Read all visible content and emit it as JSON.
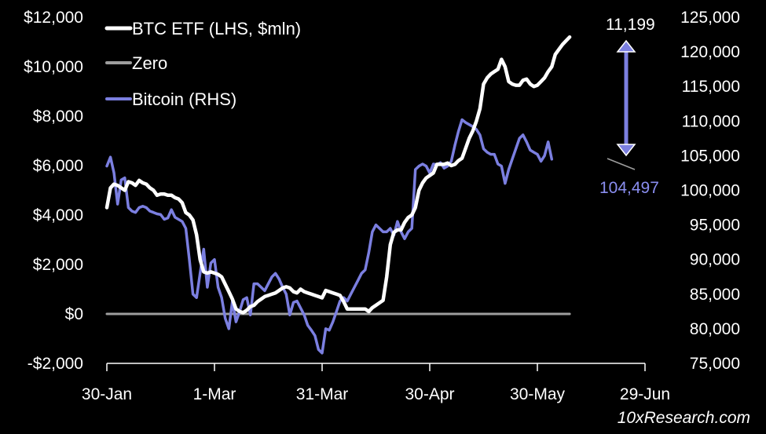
{
  "chart_data": {
    "type": "line",
    "title": "",
    "x_start_date": "2025-01-30",
    "x_ticks": [
      {
        "label": "30-Jan",
        "day": 0
      },
      {
        "label": "1-Mar",
        "day": 30
      },
      {
        "label": "31-Mar",
        "day": 60
      },
      {
        "label": "30-Apr",
        "day": 90
      },
      {
        "label": "30-May",
        "day": 120
      },
      {
        "label": "29-Jun",
        "day": 150
      }
    ],
    "xlim": [
      0,
      150
    ],
    "y_left": {
      "ylim": [
        -2000,
        12000
      ],
      "ticks": [
        -2000,
        0,
        2000,
        4000,
        6000,
        8000,
        10000,
        12000
      ],
      "tick_labels": [
        "-$2,000",
        "$0",
        "$2,000",
        "$4,000",
        "$6,000",
        "$8,000",
        "$10,000",
        "$12,000"
      ]
    },
    "y_right": {
      "ylim": [
        75000,
        125000
      ],
      "ticks": [
        75000,
        80000,
        85000,
        90000,
        95000,
        100000,
        105000,
        110000,
        115000,
        120000,
        125000
      ],
      "tick_labels": [
        "75,000",
        "80,000",
        "85,000",
        "90,000",
        "95,000",
        "100,000",
        "105,000",
        "110,000",
        "115,000",
        "120,000",
        "125,000"
      ]
    },
    "legend": {
      "position": "top-left",
      "entries": [
        "BTC ETF (LHS, $mln)",
        "Zero",
        "Bitcoin (RHS)"
      ]
    },
    "series": [
      {
        "name": "BTC ETF (LHS, $mln)",
        "axis": "left",
        "color": "#ffffff",
        "points": [
          [
            0,
            4300
          ],
          [
            1,
            5100
          ],
          [
            2,
            5250
          ],
          [
            3,
            5200
          ],
          [
            4,
            5100
          ],
          [
            5,
            5000
          ],
          [
            6,
            5350
          ],
          [
            7,
            5300
          ],
          [
            8,
            5200
          ],
          [
            9,
            5400
          ],
          [
            10,
            5300
          ],
          [
            11,
            5250
          ],
          [
            12,
            5100
          ],
          [
            13,
            5000
          ],
          [
            14,
            4800
          ],
          [
            15,
            4850
          ],
          [
            16,
            4850
          ],
          [
            17,
            4800
          ],
          [
            18,
            4800
          ],
          [
            19,
            4700
          ],
          [
            20,
            4650
          ],
          [
            21,
            4500
          ],
          [
            22,
            4100
          ],
          [
            23,
            4000
          ],
          [
            24,
            3800
          ],
          [
            25,
            3200
          ],
          [
            26,
            2200
          ],
          [
            27,
            1700
          ],
          [
            28,
            1650
          ],
          [
            29,
            1700
          ],
          [
            30,
            1650
          ],
          [
            31,
            1600
          ],
          [
            32,
            1500
          ],
          [
            33,
            1200
          ],
          [
            34,
            900
          ],
          [
            35,
            600
          ],
          [
            36,
            200
          ],
          [
            37,
            100
          ],
          [
            38,
            50
          ],
          [
            39,
            150
          ],
          [
            40,
            300
          ],
          [
            41,
            350
          ],
          [
            42,
            500
          ],
          [
            43,
            600
          ],
          [
            44,
            700
          ],
          [
            45,
            750
          ],
          [
            46,
            800
          ],
          [
            47,
            850
          ],
          [
            48,
            950
          ],
          [
            49,
            1050
          ],
          [
            50,
            1100
          ],
          [
            51,
            1050
          ],
          [
            52,
            900
          ],
          [
            53,
            850
          ],
          [
            54,
            1000
          ],
          [
            55,
            900
          ],
          [
            56,
            850
          ],
          [
            57,
            800
          ],
          [
            58,
            750
          ],
          [
            59,
            700
          ],
          [
            60,
            650
          ],
          [
            61,
            950
          ],
          [
            62,
            900
          ],
          [
            63,
            850
          ],
          [
            64,
            800
          ],
          [
            65,
            750
          ],
          [
            66,
            500
          ],
          [
            67,
            200
          ],
          [
            68,
            200
          ],
          [
            69,
            200
          ],
          [
            70,
            200
          ],
          [
            71,
            200
          ],
          [
            72,
            200
          ],
          [
            73,
            100
          ],
          [
            74,
            250
          ],
          [
            75,
            350
          ],
          [
            76,
            450
          ],
          [
            77,
            550
          ],
          [
            78,
            1500
          ],
          [
            79,
            2800
          ],
          [
            80,
            3300
          ],
          [
            81,
            3400
          ],
          [
            82,
            3400
          ],
          [
            83,
            3700
          ],
          [
            84,
            3900
          ],
          [
            85,
            4000
          ],
          [
            86,
            4300
          ],
          [
            87,
            5000
          ],
          [
            88,
            5300
          ],
          [
            89,
            5500
          ],
          [
            90,
            5600
          ],
          [
            91,
            5700
          ],
          [
            92,
            6050
          ],
          [
            93,
            6050
          ],
          [
            94,
            6050
          ],
          [
            95,
            6100
          ],
          [
            96,
            6000
          ],
          [
            97,
            6050
          ],
          [
            98,
            6200
          ],
          [
            99,
            6300
          ],
          [
            100,
            6700
          ],
          [
            101,
            7100
          ],
          [
            102,
            7400
          ],
          [
            103,
            7800
          ],
          [
            104,
            8300
          ],
          [
            105,
            9300
          ],
          [
            106,
            9550
          ],
          [
            107,
            9700
          ],
          [
            108,
            9800
          ],
          [
            109,
            9900
          ],
          [
            110,
            10300
          ],
          [
            111,
            10000
          ],
          [
            112,
            9400
          ],
          [
            113,
            9300
          ],
          [
            114,
            9250
          ],
          [
            115,
            9250
          ],
          [
            116,
            9450
          ],
          [
            117,
            9500
          ],
          [
            118,
            9300
          ],
          [
            119,
            9200
          ],
          [
            120,
            9250
          ],
          [
            121,
            9400
          ],
          [
            122,
            9550
          ],
          [
            123,
            9800
          ],
          [
            124,
            10000
          ],
          [
            125,
            10500
          ],
          [
            126,
            10700
          ],
          [
            127,
            10900
          ],
          [
            128,
            11050
          ],
          [
            129,
            11199
          ]
        ]
      },
      {
        "name": "Zero",
        "axis": "left",
        "color": "#9e9e9e",
        "points": [
          [
            0,
            0
          ],
          [
            129,
            0
          ]
        ]
      },
      {
        "name": "Bitcoin (RHS)",
        "axis": "right",
        "color": "#7b7fe0",
        "points": [
          [
            0,
            103500
          ],
          [
            1,
            104800
          ],
          [
            2,
            102500
          ],
          [
            3,
            98000
          ],
          [
            4,
            101500
          ],
          [
            5,
            101800
          ],
          [
            6,
            97500
          ],
          [
            7,
            97000
          ],
          [
            8,
            96800
          ],
          [
            9,
            97500
          ],
          [
            10,
            97700
          ],
          [
            11,
            97500
          ],
          [
            12,
            97000
          ],
          [
            13,
            96800
          ],
          [
            14,
            96600
          ],
          [
            15,
            96500
          ],
          [
            16,
            95800
          ],
          [
            17,
            96000
          ],
          [
            18,
            97200
          ],
          [
            19,
            96100
          ],
          [
            20,
            95800
          ],
          [
            21,
            95500
          ],
          [
            22,
            94500
          ],
          [
            23,
            90000
          ],
          [
            24,
            85000
          ],
          [
            25,
            84500
          ],
          [
            26,
            88000
          ],
          [
            27,
            91500
          ],
          [
            28,
            86000
          ],
          [
            29,
            89500
          ],
          [
            30,
            90000
          ],
          [
            31,
            86000
          ],
          [
            32,
            84500
          ],
          [
            33,
            81500
          ],
          [
            34,
            80000
          ],
          [
            35,
            84000
          ],
          [
            36,
            81000
          ],
          [
            37,
            82500
          ],
          [
            38,
            84200
          ],
          [
            39,
            84500
          ],
          [
            40,
            82000
          ],
          [
            41,
            86500
          ],
          [
            42,
            86500
          ],
          [
            43,
            86000
          ],
          [
            44,
            85500
          ],
          [
            45,
            86500
          ],
          [
            46,
            87500
          ],
          [
            47,
            88000
          ],
          [
            48,
            87200
          ],
          [
            49,
            86000
          ],
          [
            50,
            85000
          ],
          [
            51,
            82000
          ],
          [
            52,
            83800
          ],
          [
            53,
            84000
          ],
          [
            54,
            83000
          ],
          [
            55,
            82000
          ],
          [
            56,
            80500
          ],
          [
            57,
            79800
          ],
          [
            58,
            79000
          ],
          [
            59,
            77000
          ],
          [
            60,
            76500
          ],
          [
            61,
            80000
          ],
          [
            62,
            79800
          ],
          [
            63,
            81000
          ],
          [
            64,
            82500
          ],
          [
            65,
            84000
          ],
          [
            66,
            84500
          ],
          [
            67,
            84000
          ],
          [
            68,
            85000
          ],
          [
            69,
            86000
          ],
          [
            70,
            87000
          ],
          [
            71,
            88000
          ],
          [
            72,
            88500
          ],
          [
            73,
            91000
          ],
          [
            74,
            94000
          ],
          [
            75,
            95000
          ],
          [
            76,
            94500
          ],
          [
            77,
            94000
          ],
          [
            78,
            94000
          ],
          [
            79,
            94500
          ],
          [
            80,
            93500
          ],
          [
            81,
            95500
          ],
          [
            82,
            94000
          ],
          [
            83,
            93000
          ],
          [
            84,
            94000
          ],
          [
            85,
            94500
          ],
          [
            86,
            103000
          ],
          [
            87,
            103500
          ],
          [
            88,
            103800
          ],
          [
            89,
            103500
          ],
          [
            90,
            102500
          ],
          [
            91,
            103800
          ],
          [
            92,
            103700
          ],
          [
            93,
            104000
          ],
          [
            94,
            103200
          ],
          [
            95,
            103500
          ],
          [
            96,
            104200
          ],
          [
            97,
            106500
          ],
          [
            98,
            108500
          ],
          [
            99,
            110200
          ],
          [
            100,
            109800
          ],
          [
            101,
            109500
          ],
          [
            102,
            109200
          ],
          [
            103,
            108800
          ],
          [
            104,
            108000
          ],
          [
            105,
            106000
          ],
          [
            106,
            105500
          ],
          [
            107,
            105200
          ],
          [
            108,
            105200
          ],
          [
            109,
            103800
          ],
          [
            110,
            103500
          ],
          [
            111,
            101000
          ],
          [
            112,
            103000
          ],
          [
            113,
            104500
          ],
          [
            114,
            106000
          ],
          [
            115,
            107500
          ],
          [
            116,
            108000
          ],
          [
            117,
            107000
          ],
          [
            118,
            105800
          ],
          [
            119,
            105500
          ],
          [
            120,
            105200
          ],
          [
            121,
            104200
          ],
          [
            122,
            105000
          ],
          [
            123,
            107000
          ],
          [
            124,
            104497
          ]
        ]
      }
    ],
    "annotations": [
      {
        "text": "11,199",
        "series": "BTC ETF (LHS, $mln)"
      },
      {
        "text": "104,497",
        "series": "Bitcoin (RHS)"
      }
    ]
  },
  "source_label": "10xResearch.com"
}
